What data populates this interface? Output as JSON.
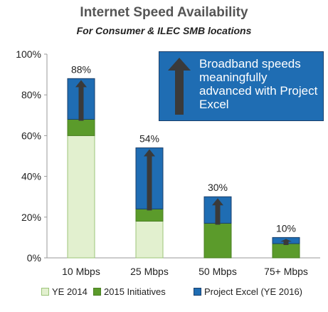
{
  "chart_data": {
    "type": "bar",
    "stacked": true,
    "title": "Internet Speed Availability",
    "subtitle": "For Consumer & ILEC SMB locations",
    "categories": [
      "10 Mbps",
      "25 Mbps",
      "50 Mbps",
      "75+ Mbps"
    ],
    "series": [
      {
        "name": "YE 2014",
        "values": [
          60,
          18,
          0,
          0
        ],
        "color": "#e2f0cf"
      },
      {
        "name": "2015 Initiatives",
        "values": [
          8,
          6,
          17,
          7
        ],
        "color": "#5b9b2b"
      },
      {
        "name": "Project Excel (YE 2016)",
        "values": [
          20,
          30,
          13,
          3
        ],
        "color": "#1f6db3"
      }
    ],
    "totals": [
      "88%",
      "54%",
      "30%",
      "10%"
    ],
    "ylim": [
      0,
      100
    ],
    "yticks": [
      "0%",
      "20%",
      "40%",
      "60%",
      "80%",
      "100%"
    ],
    "legend_position": "bottom",
    "annotation": "Broadband speeds meaningfully advanced with Project Excel"
  }
}
